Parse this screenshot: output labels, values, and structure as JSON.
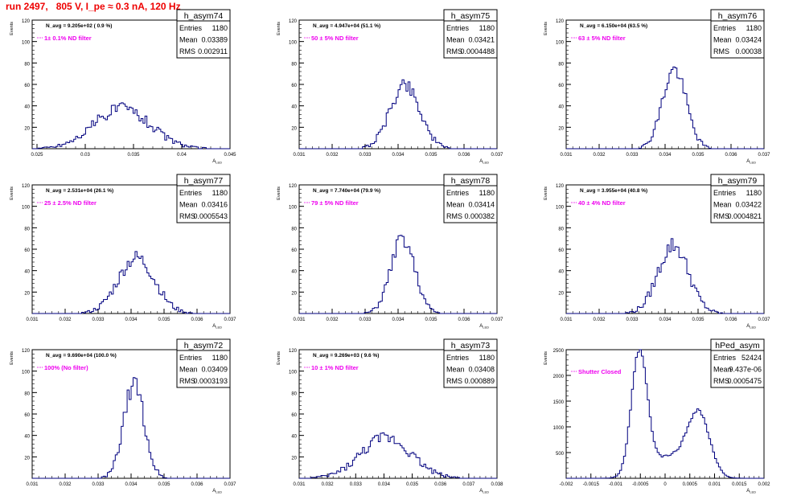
{
  "title": "run 2497,   805 V, I_pe ≈ 0.3 nA, 120 Hz",
  "colors": {
    "title": "#ee0000",
    "note": "#ee00ee",
    "histogram": "#00007f",
    "axis": "#000000"
  },
  "axis_labels": {
    "y": "Events",
    "x_main": "A",
    "x_sub": "LED"
  },
  "chart_data": [
    {
      "type": "histogram",
      "name": "h_asym74",
      "stats": {
        "entries_label": "Entries",
        "entries": "1180",
        "mean_label": "Mean",
        "mean": "0.03389",
        "rms_label": "RMS",
        "rms": "0.002911"
      },
      "navg": "N_avg = 9.205e+02 ( 0.9 %)",
      "note": "1± 0.1% ND filter",
      "xlim": [
        0.0245,
        0.045
      ],
      "ylim": [
        0,
        120
      ],
      "yticks": [
        20,
        40,
        60,
        80,
        100,
        120
      ],
      "ytick_labels": [
        "20",
        "40",
        "60",
        "80",
        "100",
        "120"
      ],
      "xticks": [
        0.025,
        0.03,
        0.035,
        0.04,
        0.045
      ],
      "xtick_labels": [
        "0.025",
        "0.03",
        "0.035",
        "0.04",
        "0.045"
      ],
      "xlabel": "A",
      "xlabel_sub": "LED",
      "ylabel": "Events",
      "peaks": [
        {
          "center": 0.0338,
          "sigma": 0.0029,
          "height": 38
        }
      ],
      "noise": 6,
      "seed": 74
    },
    {
      "type": "histogram",
      "name": "h_asym75",
      "stats": {
        "entries_label": "Entries",
        "entries": "1180",
        "mean_label": "Mean",
        "mean": "0.03421",
        "rms_label": "RMS",
        "rms": "0.0004488"
      },
      "navg": "N_avg = 4.947e+04 (51.1 %)",
      "note": "50 ± 5% ND filter",
      "xlim": [
        0.031,
        0.037
      ],
      "ylim": [
        0,
        120
      ],
      "yticks": [
        20,
        40,
        60,
        80,
        100,
        120
      ],
      "ytick_labels": [
        "20",
        "40",
        "60",
        "80",
        "100",
        "120"
      ],
      "xticks": [
        0.031,
        0.032,
        0.033,
        0.034,
        0.035,
        0.036,
        0.037
      ],
      "xtick_labels": [
        "0.031",
        "0.032",
        "0.033",
        "0.034",
        "0.035",
        "0.036",
        "0.037"
      ],
      "xlabel": "A",
      "xlabel_sub": "LED",
      "ylabel": "Events",
      "peaks": [
        {
          "center": 0.03421,
          "sigma": 0.00045,
          "height": 60
        }
      ],
      "noise": 7,
      "seed": 75
    },
    {
      "type": "histogram",
      "name": "h_asym76",
      "stats": {
        "entries_label": "Entries",
        "entries": "1180",
        "mean_label": "Mean",
        "mean": "0.03424",
        "rms_label": "RMS",
        "rms": "0.00038"
      },
      "navg": "N_avg = 6.150e+04 (63.5 %)",
      "note": "63 ± 5% ND filter",
      "xlim": [
        0.031,
        0.037
      ],
      "ylim": [
        0,
        120
      ],
      "yticks": [
        20,
        40,
        60,
        80,
        100,
        120
      ],
      "ytick_labels": [
        "20",
        "40",
        "60",
        "80",
        "100",
        "120"
      ],
      "xticks": [
        0.031,
        0.032,
        0.033,
        0.034,
        0.035,
        0.036,
        0.037
      ],
      "xtick_labels": [
        "0.031",
        "0.032",
        "0.033",
        "0.034",
        "0.035",
        "0.036",
        "0.037"
      ],
      "xlabel": "A",
      "xlabel_sub": "LED",
      "ylabel": "Events",
      "peaks": [
        {
          "center": 0.03428,
          "sigma": 0.00036,
          "height": 74
        }
      ],
      "noise": 7,
      "seed": 76
    },
    {
      "type": "histogram",
      "name": "h_asym77",
      "stats": {
        "entries_label": "Entries",
        "entries": "1180",
        "mean_label": "Mean",
        "mean": "0.03416",
        "rms_label": "RMS",
        "rms": "0.0005543"
      },
      "navg": "N_avg = 2.531e+04 (26.1 %)",
      "note": "25 ± 2.5% ND filter",
      "xlim": [
        0.031,
        0.037
      ],
      "ylim": [
        0,
        120
      ],
      "yticks": [
        20,
        40,
        60,
        80,
        100,
        120
      ],
      "ytick_labels": [
        "20",
        "40",
        "60",
        "80",
        "100",
        "120"
      ],
      "xticks": [
        0.031,
        0.032,
        0.033,
        0.034,
        0.035,
        0.036,
        0.037
      ],
      "xtick_labels": [
        "0.031",
        "0.032",
        "0.033",
        "0.034",
        "0.035",
        "0.036",
        "0.037"
      ],
      "xlabel": "A",
      "xlabel_sub": "LED",
      "ylabel": "Events",
      "peaks": [
        {
          "center": 0.03416,
          "sigma": 0.00055,
          "height": 52
        }
      ],
      "noise": 7,
      "seed": 77
    },
    {
      "type": "histogram",
      "name": "h_asym78",
      "stats": {
        "entries_label": "Entries",
        "entries": "1180",
        "mean_label": "Mean",
        "mean": "0.03414",
        "rms_label": "RMS",
        "rms": "0.000382"
      },
      "navg": "N_avg = 7.740e+04 (79.9 %)",
      "note": "79 ± 5% ND filter",
      "xlim": [
        0.031,
        0.037
      ],
      "ylim": [
        0,
        120
      ],
      "yticks": [
        20,
        40,
        60,
        80,
        100,
        120
      ],
      "ytick_labels": [
        "20",
        "40",
        "60",
        "80",
        "100",
        "120"
      ],
      "xticks": [
        0.031,
        0.032,
        0.033,
        0.034,
        0.035,
        0.036,
        0.037
      ],
      "xtick_labels": [
        "0.031",
        "0.032",
        "0.033",
        "0.034",
        "0.035",
        "0.036",
        "0.037"
      ],
      "xlabel": "A",
      "xlabel_sub": "LED",
      "ylabel": "Events",
      "peaks": [
        {
          "center": 0.03414,
          "sigma": 0.00036,
          "height": 70
        }
      ],
      "noise": 7,
      "seed": 78
    },
    {
      "type": "histogram",
      "name": "h_asym79",
      "stats": {
        "entries_label": "Entries",
        "entries": "1180",
        "mean_label": "Mean",
        "mean": "0.03422",
        "rms_label": "RMS",
        "rms": "0.0004821"
      },
      "navg": "N_avg = 3.955e+04 (40.8 %)",
      "note": "40 ± 4% ND filter",
      "xlim": [
        0.031,
        0.037
      ],
      "ylim": [
        0,
        120
      ],
      "yticks": [
        20,
        40,
        60,
        80,
        100,
        120
      ],
      "ytick_labels": [
        "20",
        "40",
        "60",
        "80",
        "100",
        "120"
      ],
      "xticks": [
        0.031,
        0.032,
        0.033,
        0.034,
        0.035,
        0.036,
        0.037
      ],
      "xtick_labels": [
        "0.031",
        "0.032",
        "0.033",
        "0.034",
        "0.035",
        "0.036",
        "0.037"
      ],
      "xlabel": "A",
      "xlabel_sub": "LED",
      "ylabel": "Events",
      "peaks": [
        {
          "center": 0.03425,
          "sigma": 0.00046,
          "height": 64
        }
      ],
      "noise": 8,
      "seed": 79
    },
    {
      "type": "histogram",
      "name": "h_asym72",
      "stats": {
        "entries_label": "Entries",
        "entries": "1180",
        "mean_label": "Mean",
        "mean": "0.03409",
        "rms_label": "RMS",
        "rms": "0.0003193"
      },
      "navg": "N_avg = 9.690e+04 (100.0 %)",
      "note": "100% (No filter)",
      "xlim": [
        0.031,
        0.037
      ],
      "ylim": [
        0,
        120
      ],
      "yticks": [
        20,
        40,
        60,
        80,
        100,
        120
      ],
      "ytick_labels": [
        "20",
        "40",
        "60",
        "80",
        "100",
        "120"
      ],
      "xticks": [
        0.031,
        0.032,
        0.033,
        0.034,
        0.035,
        0.036,
        0.037
      ],
      "xtick_labels": [
        "0.031",
        "0.032",
        "0.033",
        "0.034",
        "0.035",
        "0.036",
        "0.037"
      ],
      "xlabel": "A",
      "xlabel_sub": "LED",
      "ylabel": "Events",
      "peaks": [
        {
          "center": 0.03409,
          "sigma": 0.00031,
          "height": 88
        }
      ],
      "noise": 9,
      "seed": 72
    },
    {
      "type": "histogram",
      "name": "h_asym73",
      "stats": {
        "entries_label": "Entries",
        "entries": "1180",
        "mean_label": "Mean",
        "mean": "0.03408",
        "rms_label": "RMS",
        "rms": "0.000889"
      },
      "navg": "N_avg = 9.269e+03 ( 9.6 %)",
      "note": "10 ± 1% ND filter",
      "xlim": [
        0.031,
        0.038
      ],
      "ylim": [
        0,
        120
      ],
      "yticks": [
        20,
        40,
        60,
        80,
        100,
        120
      ],
      "ytick_labels": [
        "20",
        "40",
        "60",
        "80",
        "100",
        "120"
      ],
      "xticks": [
        0.031,
        0.032,
        0.033,
        0.034,
        0.035,
        0.036,
        0.037,
        0.038
      ],
      "xtick_labels": [
        "0.031",
        "0.032",
        "0.033",
        "0.034",
        "0.035",
        "0.036",
        "0.037",
        "0.038"
      ],
      "xlabel": "A",
      "xlabel_sub": "LED",
      "ylabel": "Events",
      "peaks": [
        {
          "center": 0.03408,
          "sigma": 0.00089,
          "height": 38
        }
      ],
      "noise": 6,
      "seed": 73
    },
    {
      "type": "histogram",
      "name": "hPed_asym",
      "stats": {
        "entries_label": "Entries",
        "entries": "52424",
        "mean_label": "Mean",
        "mean": "9.437e-06",
        "rms_label": "RMS",
        "rms": "0.0005475"
      },
      "navg": "",
      "note": "Shutter Closed",
      "xlim": [
        -0.002,
        0.002
      ],
      "ylim": [
        0,
        2500
      ],
      "yticks": [
        500,
        1000,
        1500,
        2000,
        2500
      ],
      "ytick_labels": [
        "500",
        "1000",
        "1500",
        "2000",
        "2500"
      ],
      "xticks": [
        -0.002,
        -0.0015,
        -0.001,
        -0.0005,
        0,
        0.0005,
        0.001,
        0.0015,
        0.002
      ],
      "xtick_labels": [
        "-0.002",
        "-0.0015",
        "-0.001",
        "-0.0005",
        "0",
        "0.0005",
        "0.001",
        "0.0015",
        "0.002"
      ],
      "xlabel": "A",
      "xlabel_sub": "LED",
      "ylabel": "Events",
      "peaks": [
        {
          "center": -0.00052,
          "sigma": 0.00016,
          "height": 2380
        },
        {
          "center": 0.00068,
          "sigma": 0.00022,
          "height": 1180
        },
        {
          "center": 0.0001,
          "sigma": 0.0004,
          "height": 420
        }
      ],
      "noise": 50,
      "seed": 99
    }
  ]
}
